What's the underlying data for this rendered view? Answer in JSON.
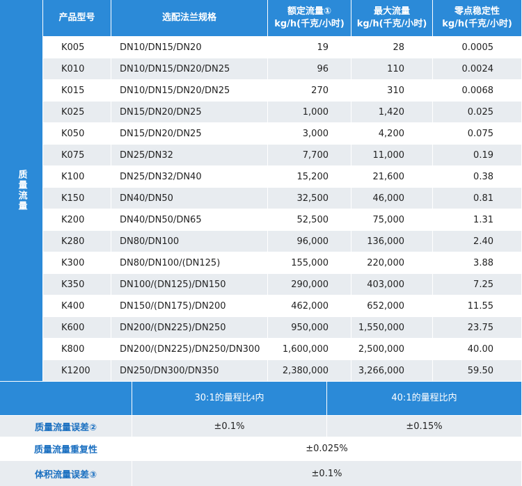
{
  "table": {
    "side_label": "质量流量",
    "header": [
      {
        "lines": [
          "产品型号"
        ]
      },
      {
        "lines": [
          "选配法兰规格"
        ]
      },
      {
        "lines": [
          "额定流量①",
          "kg/h(千克/小时)"
        ]
      },
      {
        "lines": [
          "最大流量",
          "kg/h(千克/小时)"
        ]
      },
      {
        "lines": [
          "零点稳定性",
          "kg/h(千克/小时)"
        ]
      }
    ],
    "rows": [
      [
        "K005",
        "DN10/DN15/DN20",
        "19",
        "28",
        "0.0005"
      ],
      [
        "K010",
        "DN10/DN15/DN20/DN25",
        "96",
        "110",
        "0.0024"
      ],
      [
        "K015",
        "DN10/DN15/DN20/DN25",
        "270",
        "310",
        "0.0068"
      ],
      [
        "K025",
        "DN15/DN20/DN25",
        "1,000",
        "1,420",
        "0.025"
      ],
      [
        "K050",
        "DN15/DN20/DN25",
        "3,000",
        "4,200",
        "0.075"
      ],
      [
        "K075",
        "DN25/DN32",
        "7,700",
        "11,000",
        "0.19"
      ],
      [
        "K100",
        "DN25/DN32/DN40",
        "15,200",
        "21,600",
        "0.38"
      ],
      [
        "K150",
        "DN40/DN50",
        "32,500",
        "46,000",
        "0.81"
      ],
      [
        "K200",
        "DN40/DN50/DN65",
        "52,500",
        "75,000",
        "1.31"
      ],
      [
        "K280",
        "DN80/DN100",
        "96,000",
        "136,000",
        "2.40"
      ],
      [
        "K300",
        "DN80/DN100/(DN125)",
        "155,000",
        "220,000",
        "3.88"
      ],
      [
        "K350",
        "DN100/(DN125)/DN150",
        "290,000",
        "403,000",
        "7.25"
      ],
      [
        "K400",
        "DN150/(DN175)/DN200",
        "462,000",
        "652,000",
        "11.55"
      ],
      [
        "K600",
        "DN200/(DN225)/DN250",
        "950,000",
        "1,550,000",
        "23.75"
      ],
      [
        "K800",
        "DN200/(DN225)/DN250/DN300",
        "1,600,000",
        "2,500,000",
        "40.00"
      ],
      [
        "K1200",
        "DN250/DN300/DN350",
        "2,380,000",
        "3,266,000",
        "59.50"
      ]
    ]
  },
  "accuracy": {
    "header": [
      {
        "before": "30:1的量程比",
        "sup": "4",
        "after": "内"
      },
      {
        "before": "40:1的量程比内"
      }
    ],
    "rows": [
      {
        "label": "质量流量误差②",
        "values": [
          "±0.1%",
          "±0.15%"
        ]
      },
      {
        "label": "质量流量重复性",
        "values": [
          "±0.025%"
        ]
      },
      {
        "label": "体积流量误差③",
        "values": [
          "±0.1%"
        ]
      }
    ]
  }
}
